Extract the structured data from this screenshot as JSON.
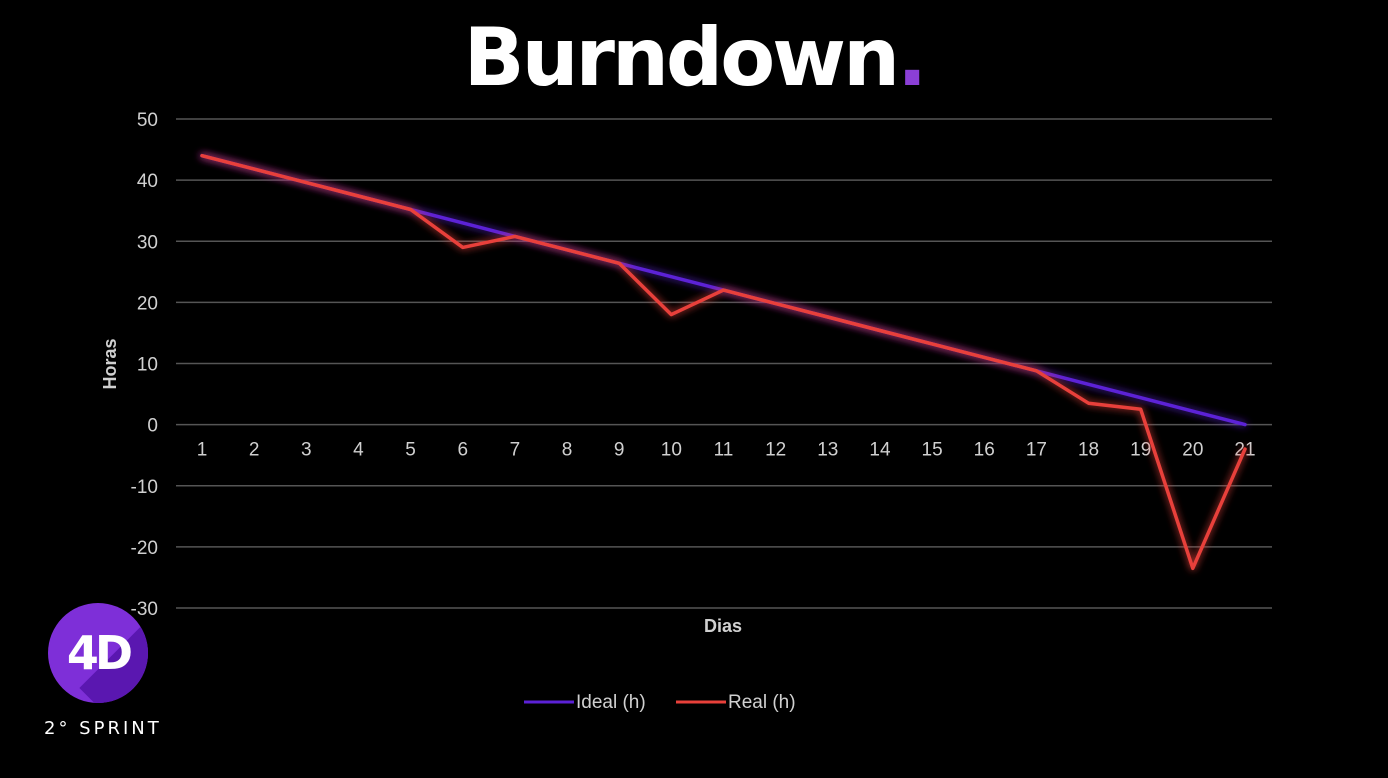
{
  "page": {
    "title": "Burndown",
    "title_dot": ".",
    "logo_text": "4D",
    "sprint_label": "2° SPRINT"
  },
  "colors": {
    "background": "#000000",
    "ideal": "#5b21d6",
    "real": "#e8403a",
    "accent": "#8b3fd6",
    "grid": "#555555",
    "tick_text": "#d0d0d0"
  },
  "chart_data": {
    "type": "line",
    "title": "",
    "xlabel": "Dias",
    "ylabel": "Horas",
    "ylim": [
      -30,
      50
    ],
    "yticks": [
      50,
      40,
      30,
      20,
      10,
      0,
      -10,
      -20,
      -30
    ],
    "x": [
      1,
      2,
      3,
      4,
      5,
      6,
      7,
      8,
      9,
      10,
      11,
      12,
      13,
      14,
      15,
      16,
      17,
      18,
      19,
      20,
      21
    ],
    "grid": true,
    "legend_position": "bottom",
    "series": [
      {
        "name": "Ideal (h)",
        "color": "#5b21d6",
        "values": [
          44,
          41.8,
          39.6,
          37.4,
          35.2,
          33,
          30.8,
          28.6,
          26.4,
          24.2,
          22,
          19.8,
          17.6,
          15.4,
          13.2,
          11,
          8.8,
          6.6,
          4.4,
          2.2,
          0
        ]
      },
      {
        "name": "Real (h)",
        "color": "#e8403a",
        "values": [
          44,
          41.8,
          39.6,
          37.4,
          35.2,
          29,
          30.8,
          28.6,
          26.4,
          18,
          22,
          19.8,
          17.6,
          15.4,
          13.2,
          11,
          8.8,
          3.5,
          2.5,
          -23.5,
          -4
        ]
      }
    ]
  }
}
